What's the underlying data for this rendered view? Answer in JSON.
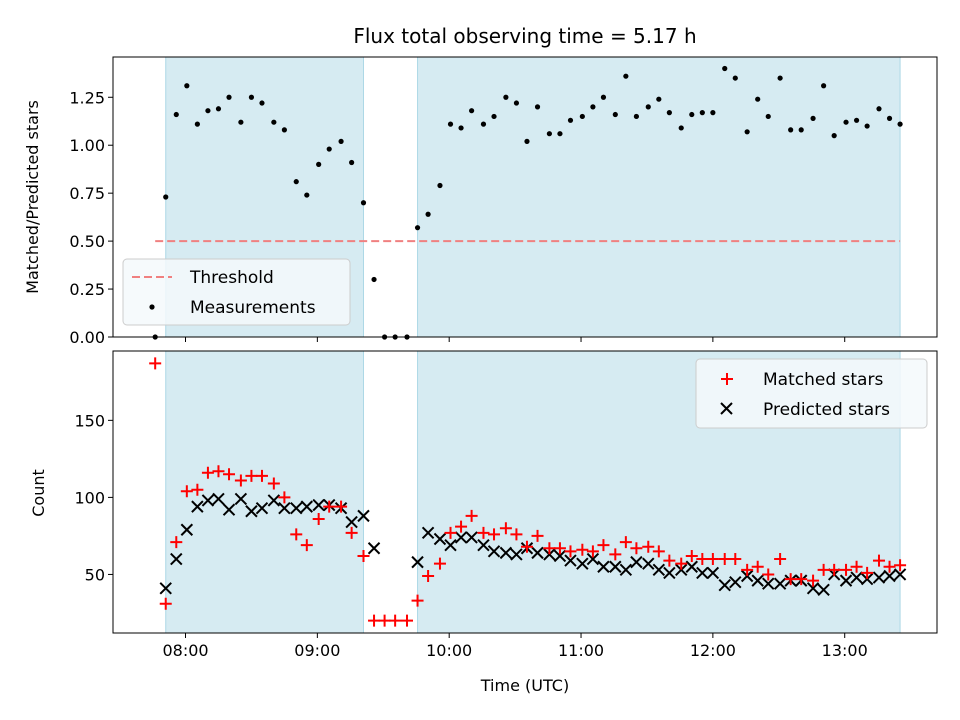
{
  "chart_data": [
    {
      "type": "scatter",
      "title": "Flux total observing time = 5.17 h",
      "ylabel": "Matched/Predicted stars",
      "xlabel": "",
      "xlim": [
        7.45,
        13.7
      ],
      "ylim": [
        0.0,
        1.46
      ],
      "yticks": [
        0.0,
        0.25,
        0.5,
        0.75,
        1.0,
        1.25
      ],
      "ytick_labels": [
        "0.00",
        "0.25",
        "0.50",
        "0.75",
        "1.00",
        "1.25"
      ],
      "xticks": [
        8,
        9,
        10,
        11,
        12,
        13
      ],
      "shaded_intervals": [
        [
          7.85,
          9.35
        ],
        [
          9.76,
          13.42
        ]
      ],
      "legend": {
        "location": "lower-left",
        "entries": [
          {
            "label": "Threshold",
            "style": "dashed-line",
            "color": "#f08080"
          },
          {
            "label": "Measurements",
            "style": "dot",
            "color": "#000000"
          }
        ]
      },
      "threshold": {
        "name": "Threshold",
        "value": 0.5,
        "x_range": [
          7.77,
          13.42
        ]
      },
      "series": [
        {
          "name": "Measurements",
          "x": [
            7.77,
            7.85,
            7.93,
            8.01,
            8.09,
            8.17,
            8.25,
            8.33,
            8.42,
            8.5,
            8.58,
            8.67,
            8.75,
            8.84,
            8.92,
            9.01,
            9.09,
            9.18,
            9.26,
            9.35,
            9.43,
            9.51,
            9.59,
            9.68,
            9.76,
            9.84,
            9.93,
            10.01,
            10.09,
            10.17,
            10.26,
            10.34,
            10.43,
            10.51,
            10.59,
            10.67,
            10.76,
            10.84,
            10.92,
            11.01,
            11.09,
            11.17,
            11.26,
            11.34,
            11.42,
            11.51,
            11.59,
            11.67,
            11.76,
            11.84,
            11.92,
            12.0,
            12.09,
            12.17,
            12.26,
            12.34,
            12.42,
            12.51,
            12.59,
            12.67,
            12.76,
            12.84,
            12.92,
            13.01,
            13.09,
            13.17,
            13.26,
            13.34,
            13.42
          ],
          "y": [
            0.0,
            0.73,
            1.16,
            1.31,
            1.11,
            1.18,
            1.19,
            1.25,
            1.12,
            1.25,
            1.22,
            1.12,
            1.08,
            0.81,
            0.74,
            0.9,
            0.98,
            1.02,
            0.91,
            0.7,
            0.3,
            0.0,
            0.0,
            0.0,
            0.57,
            0.64,
            0.79,
            1.11,
            1.09,
            1.18,
            1.11,
            1.15,
            1.25,
            1.22,
            1.02,
            1.2,
            1.06,
            1.06,
            1.13,
            1.15,
            1.2,
            1.25,
            1.16,
            1.36,
            1.15,
            1.2,
            1.24,
            1.17,
            1.09,
            1.16,
            1.17,
            1.17,
            1.4,
            1.35,
            1.07,
            1.24,
            1.15,
            1.35,
            1.08,
            1.08,
            1.14,
            1.31,
            1.05,
            1.12,
            1.13,
            1.1,
            1.19,
            1.14,
            1.11
          ]
        }
      ]
    },
    {
      "type": "scatter",
      "title": "",
      "ylabel": "Count",
      "xlabel": "Time (UTC)",
      "xlim": [
        7.45,
        13.7
      ],
      "ylim": [
        12,
        195
      ],
      "yticks": [
        50,
        100,
        150
      ],
      "ytick_labels": [
        "50",
        "100",
        "150"
      ],
      "xticks": [
        8,
        9,
        10,
        11,
        12,
        13
      ],
      "xtick_labels": [
        "08:00",
        "09:00",
        "10:00",
        "11:00",
        "12:00",
        "13:00"
      ],
      "shaded_intervals": [
        [
          7.85,
          9.35
        ],
        [
          9.76,
          13.42
        ]
      ],
      "legend": {
        "location": "top-right",
        "entries": [
          {
            "label": "Matched stars",
            "style": "plus",
            "color": "#ff0000"
          },
          {
            "label": "Predicted stars",
            "style": "x",
            "color": "#000000"
          }
        ]
      },
      "series": [
        {
          "name": "Matched stars",
          "x": [
            7.77,
            7.85,
            7.93,
            8.01,
            8.09,
            8.17,
            8.25,
            8.33,
            8.42,
            8.5,
            8.58,
            8.67,
            8.75,
            8.84,
            8.92,
            9.01,
            9.09,
            9.18,
            9.26,
            9.35,
            9.43,
            9.51,
            9.59,
            9.68,
            9.76,
            9.84,
            9.93,
            10.01,
            10.09,
            10.17,
            10.26,
            10.34,
            10.43,
            10.51,
            10.59,
            10.67,
            10.76,
            10.84,
            10.92,
            11.01,
            11.09,
            11.17,
            11.26,
            11.34,
            11.42,
            11.51,
            11.59,
            11.67,
            11.76,
            11.84,
            11.92,
            12.0,
            12.09,
            12.17,
            12.26,
            12.34,
            12.42,
            12.51,
            12.59,
            12.67,
            12.76,
            12.84,
            12.92,
            13.01,
            13.09,
            13.17,
            13.26,
            13.34,
            13.42
          ],
          "y": [
            187,
            31,
            71,
            104,
            105,
            116,
            117,
            115,
            111,
            114,
            114,
            109,
            100,
            76,
            69,
            86,
            94,
            94,
            77,
            62,
            20,
            20,
            20,
            20,
            33,
            49,
            57,
            77,
            81,
            88,
            77,
            76,
            80,
            76,
            68,
            75,
            67,
            67,
            65,
            66,
            65,
            69,
            63,
            71,
            67,
            68,
            65,
            59,
            57,
            62,
            60,
            60,
            60,
            60,
            53,
            55,
            50,
            60,
            47,
            47,
            46,
            53,
            53,
            53,
            55,
            51,
            59,
            55,
            56
          ]
        },
        {
          "name": "Predicted stars",
          "x": [
            7.85,
            7.93,
            8.01,
            8.09,
            8.17,
            8.25,
            8.33,
            8.42,
            8.5,
            8.58,
            8.67,
            8.75,
            8.84,
            8.92,
            9.01,
            9.09,
            9.18,
            9.26,
            9.35,
            9.43,
            9.76,
            9.84,
            9.93,
            10.01,
            10.09,
            10.17,
            10.26,
            10.34,
            10.43,
            10.51,
            10.59,
            10.67,
            10.76,
            10.84,
            10.92,
            11.01,
            11.09,
            11.17,
            11.26,
            11.34,
            11.42,
            11.51,
            11.59,
            11.67,
            11.76,
            11.84,
            11.92,
            12.0,
            12.09,
            12.17,
            12.26,
            12.34,
            12.42,
            12.51,
            12.59,
            12.67,
            12.76,
            12.84,
            12.92,
            13.01,
            13.09,
            13.17,
            13.26,
            13.34,
            13.42
          ],
          "y": [
            41,
            60,
            79,
            94,
            98,
            99,
            92,
            99,
            91,
            93,
            98,
            93,
            93,
            94,
            95,
            95,
            93,
            84,
            88,
            67,
            58,
            77,
            73,
            69,
            74,
            74,
            69,
            65,
            64,
            63,
            67,
            64,
            63,
            62,
            59,
            57,
            60,
            55,
            55,
            53,
            58,
            57,
            53,
            51,
            53,
            55,
            51,
            51,
            43,
            45,
            49,
            46,
            44,
            44,
            46,
            46,
            41,
            40,
            50,
            46,
            48,
            47,
            48,
            49,
            50
          ]
        }
      ]
    }
  ]
}
